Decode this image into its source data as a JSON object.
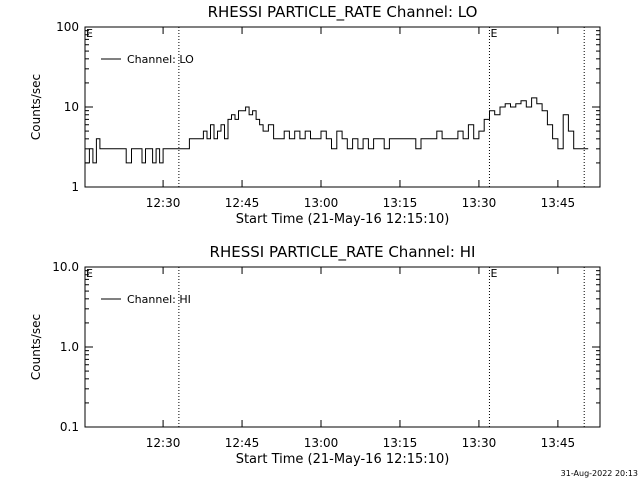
{
  "footer": {
    "timestamp": "31-Aug-2022 20:13"
  },
  "chart_data": [
    {
      "type": "line",
      "title": "RHESSI PARTICLE_RATE Channel: LO",
      "xlabel": "Start Time (21-May-16 12:15:10)",
      "ylabel": "Counts/sec",
      "yscale": "log",
      "ylim": [
        1,
        100
      ],
      "xlim": [
        "12:15:10",
        "13:53:00"
      ],
      "xticks": [
        "12:30",
        "12:45",
        "13:00",
        "13:15",
        "13:30",
        "13:45"
      ],
      "yticks": [
        "1",
        "10",
        "100"
      ],
      "legend": "upper-left",
      "markers": [
        {
          "label": "E",
          "time": "12:15:10"
        },
        {
          "label": "",
          "time": "12:33:00"
        },
        {
          "label": "E",
          "time": "13:32:00"
        },
        {
          "label": "",
          "time": "13:50:00"
        }
      ],
      "series": [
        {
          "name": "Channel: LO",
          "x": [
            "12:15:10",
            "12:16:00",
            "12:16:40",
            "12:17:20",
            "12:18:00",
            "12:20:00",
            "12:22:00",
            "12:23:00",
            "12:24:00",
            "12:25:00",
            "12:26:00",
            "12:26:40",
            "12:27:20",
            "12:28:00",
            "12:28:40",
            "12:29:20",
            "12:30:00",
            "12:31:00",
            "12:32:00",
            "12:33:00",
            "12:35:00",
            "12:37:00",
            "12:37:40",
            "12:38:20",
            "12:39:00",
            "12:39:40",
            "12:40:20",
            "12:41:00",
            "12:41:40",
            "12:42:20",
            "12:43:00",
            "12:43:40",
            "12:44:20",
            "12:45:00",
            "12:45:40",
            "12:46:20",
            "12:47:00",
            "12:47:40",
            "12:48:20",
            "12:49:00",
            "12:50:00",
            "12:51:00",
            "12:52:00",
            "12:53:00",
            "12:54:00",
            "12:55:00",
            "12:56:00",
            "12:57:00",
            "12:58:00",
            "12:59:00",
            "13:00:00",
            "13:01:00",
            "13:02:00",
            "13:03:00",
            "13:04:00",
            "13:05:00",
            "13:06:00",
            "13:07:00",
            "13:08:00",
            "13:09:00",
            "13:10:00",
            "13:11:00",
            "13:12:00",
            "13:13:00",
            "13:14:00",
            "13:15:00",
            "13:16:00",
            "13:17:00",
            "13:18:00",
            "13:19:00",
            "13:20:00",
            "13:21:00",
            "13:22:00",
            "13:23:00",
            "13:24:00",
            "13:25:00",
            "13:26:00",
            "13:27:00",
            "13:28:00",
            "13:29:00",
            "13:30:00",
            "13:31:00",
            "13:32:00",
            "13:33:00",
            "13:34:00",
            "13:35:00",
            "13:36:00",
            "13:37:00",
            "13:38:00",
            "13:39:00",
            "13:40:00",
            "13:41:00",
            "13:42:00",
            "13:43:00",
            "13:44:00",
            "13:45:00",
            "13:46:00",
            "13:47:00",
            "13:48:00",
            "13:50:00"
          ],
          "values": [
            2,
            3,
            2,
            4,
            3,
            3,
            3,
            2,
            3,
            3,
            2,
            3,
            3,
            2,
            3,
            2,
            3,
            3,
            3,
            3,
            4,
            4,
            5,
            4,
            6,
            4,
            5,
            6,
            4,
            7,
            8,
            7,
            9,
            9,
            10,
            8,
            9,
            7,
            6,
            5,
            6,
            4,
            4,
            5,
            4,
            5,
            4,
            5,
            4,
            4,
            5,
            4,
            3,
            5,
            4,
            3,
            4,
            3,
            4,
            3,
            4,
            4,
            3,
            4,
            4,
            4,
            4,
            4,
            3,
            4,
            4,
            4,
            5,
            4,
            4,
            4,
            5,
            4,
            6,
            4,
            5,
            7,
            9,
            8,
            10,
            11,
            10,
            11,
            12,
            10,
            13,
            11,
            9,
            6,
            4,
            3,
            8,
            5,
            3,
            3
          ]
        }
      ]
    },
    {
      "type": "line",
      "title": "RHESSI PARTICLE_RATE Channel: HI",
      "xlabel": "Start Time (21-May-16 12:15:10)",
      "ylabel": "Counts/sec",
      "yscale": "log",
      "ylim": [
        0.1,
        10
      ],
      "xlim": [
        "12:15:10",
        "13:53:00"
      ],
      "xticks": [
        "12:30",
        "12:45",
        "13:00",
        "13:15",
        "13:30",
        "13:45"
      ],
      "yticks": [
        "0.1",
        "1.0",
        "10.0"
      ],
      "legend": "upper-left",
      "markers": [
        {
          "label": "E",
          "time": "12:15:10"
        },
        {
          "label": "",
          "time": "12:33:00"
        },
        {
          "label": "E",
          "time": "13:32:00"
        },
        {
          "label": "",
          "time": "13:50:00"
        }
      ],
      "series": [
        {
          "name": "Channel: HI",
          "x": [],
          "values": []
        }
      ]
    }
  ]
}
